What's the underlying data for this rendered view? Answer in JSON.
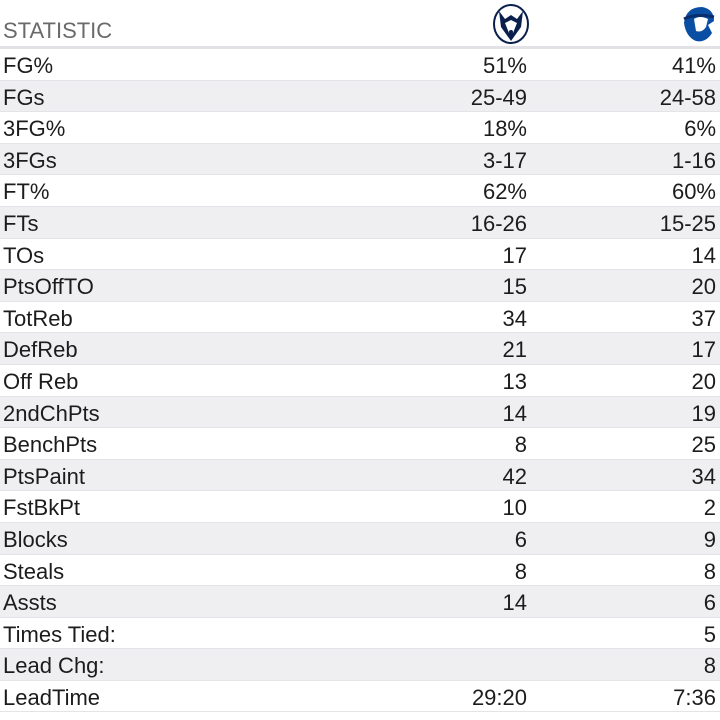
{
  "header": {
    "title": "STATISTIC"
  },
  "table": {
    "rows": [
      [
        "FG%",
        "51%",
        "41%"
      ],
      [
        "FGs",
        "25-49",
        "24-58"
      ],
      [
        "3FG%",
        "18%",
        "6%"
      ],
      [
        "3FGs",
        "3-17",
        "1-16"
      ],
      [
        "FT%",
        "62%",
        "60%"
      ],
      [
        "FTs",
        "16-26",
        "15-25"
      ],
      [
        "TOs",
        "17",
        "14"
      ],
      [
        "PtsOffTO",
        "15",
        "20"
      ],
      [
        "TotReb",
        "34",
        "37"
      ],
      [
        "DefReb",
        "21",
        "17"
      ],
      [
        "Off Reb",
        "13",
        "20"
      ],
      [
        "2ndChPts",
        "14",
        "19"
      ],
      [
        "BenchPts",
        "8",
        "25"
      ],
      [
        "PtsPaint",
        "42",
        "34"
      ],
      [
        "FstBkPt",
        "10",
        "2"
      ],
      [
        "Blocks",
        "6",
        "9"
      ],
      [
        "Steals",
        "8",
        "8"
      ],
      [
        "Assts",
        "14",
        "6"
      ],
      [
        "Times Tied:",
        null,
        "5"
      ],
      [
        "Lead Chg:",
        null,
        "8"
      ],
      [
        "LeadTime",
        "29:20",
        "7:36"
      ]
    ]
  }
}
